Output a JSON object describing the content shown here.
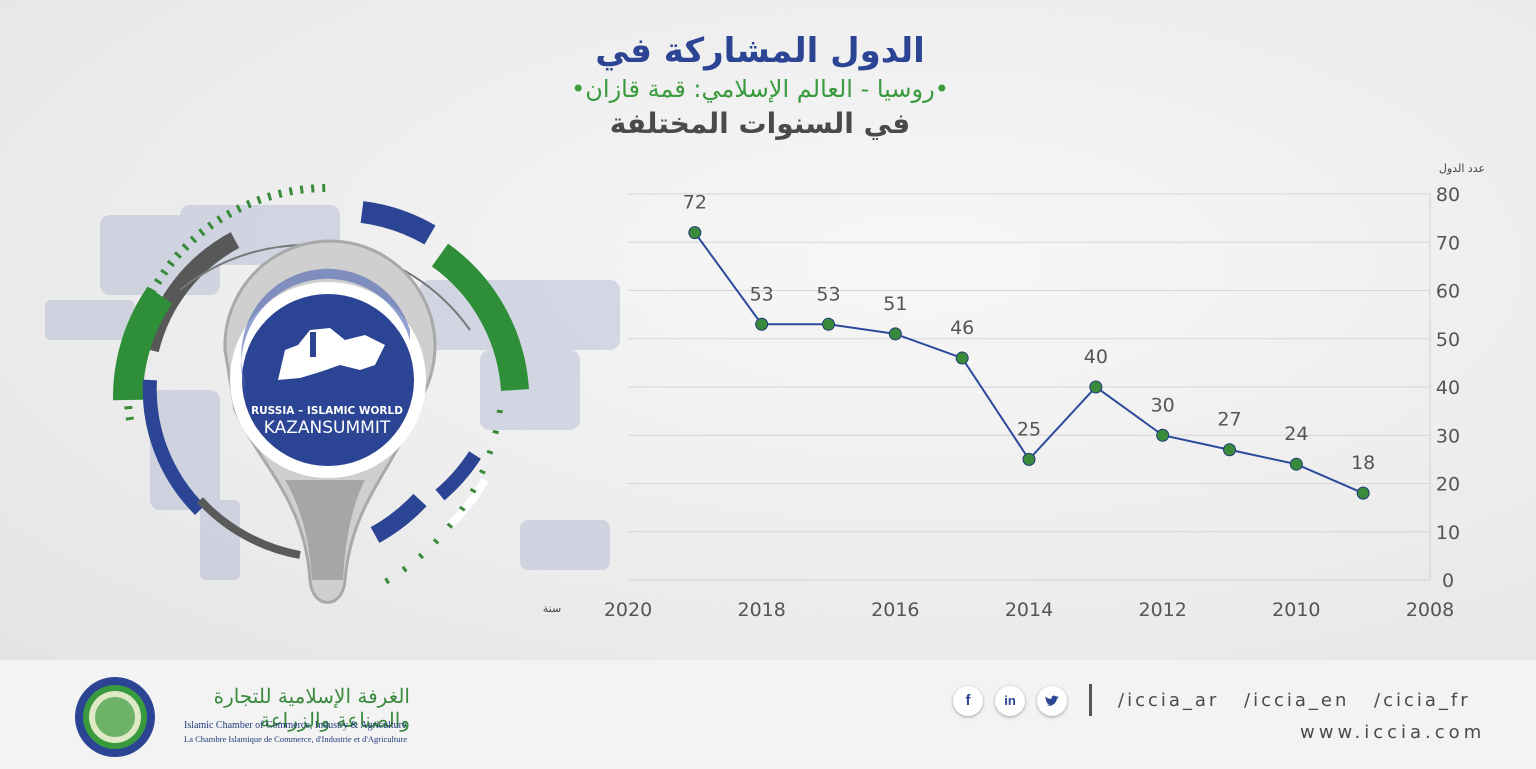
{
  "title": {
    "line1": "الدول المشاركة في",
    "line2": "•روسيا - العالم الإسلامي: قمة قازان•",
    "line3": "في السنوات المختلفة"
  },
  "emblem": {
    "line1": "RUSSIA – ISLAMIC WORLD",
    "line2": "KAZANSUMMIT"
  },
  "chart_data": {
    "type": "line",
    "ylabel": "عدد الدول",
    "xlabel": "سنة",
    "x_axis_ticks": [
      "2020",
      "2018",
      "2016",
      "2014",
      "2012",
      "2010",
      "2008"
    ],
    "y_axis_ticks": [
      "80",
      "70",
      "60",
      "50",
      "40",
      "30",
      "20",
      "10",
      "0"
    ],
    "ylim": [
      0,
      80
    ],
    "xlim": [
      2020,
      2008
    ],
    "x_reversed": true,
    "grid": true,
    "y_axis_side": "right",
    "series": [
      {
        "x": [
          2019,
          2018,
          2017,
          2016,
          2015,
          2014,
          2013,
          2012,
          2011,
          2010,
          2009
        ],
        "values": [
          72,
          53,
          53,
          51,
          46,
          25,
          40,
          30,
          27,
          24,
          18
        ]
      }
    ],
    "line_color": "#2b4a9c",
    "marker_color": "#3a8a3c"
  },
  "footer": {
    "org_ar": "الغرفة الإسلامية للتجارة والصناعة والزراعة",
    "org_en": "Islamic Chamber of Commerce, Industry & Agriculture",
    "org_fr": "La Chambre Islamique de Commerce, d'Industrie et d'Agriculture",
    "social": [
      "f",
      "in",
      "twitter"
    ],
    "handles": [
      "/iccia_ar",
      "/iccia_en",
      "/cicia_fr"
    ],
    "website": "www.iccia.com"
  },
  "colors": {
    "blue": "#2b4494",
    "green": "#3a9a3e",
    "grey": "#5a5a5a"
  }
}
